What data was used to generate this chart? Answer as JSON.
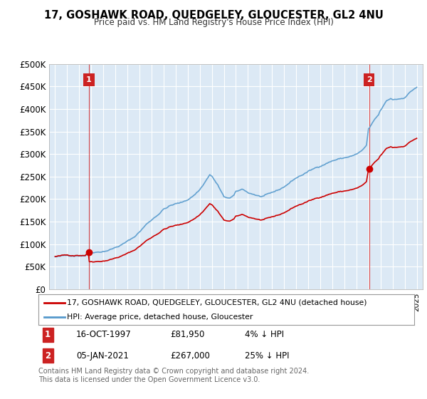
{
  "title": "17, GOSHAWK ROAD, QUEDGELEY, GLOUCESTER, GL2 4NU",
  "subtitle": "Price paid vs. HM Land Registry's House Price Index (HPI)",
  "legend_label_red": "17, GOSHAWK ROAD, QUEDGELEY, GLOUCESTER, GL2 4NU (detached house)",
  "legend_label_blue": "HPI: Average price, detached house, Gloucester",
  "annotation1_date": "16-OCT-1997",
  "annotation1_price": "£81,950",
  "annotation1_hpi": "4% ↓ HPI",
  "annotation2_date": "05-JAN-2021",
  "annotation2_price": "£267,000",
  "annotation2_hpi": "25% ↓ HPI",
  "footer": "Contains HM Land Registry data © Crown copyright and database right 2024.\nThis data is licensed under the Open Government Licence v3.0.",
  "background_color": "#ffffff",
  "plot_bg_color": "#dce9f5",
  "grid_color": "#ffffff",
  "red_color": "#cc0000",
  "blue_color": "#5599cc",
  "annotation_box_color": "#cc2222",
  "ylim": [
    0,
    500000
  ],
  "yticks": [
    0,
    50000,
    100000,
    150000,
    200000,
    250000,
    300000,
    350000,
    400000,
    450000,
    500000
  ],
  "sale1_year": 1997.8,
  "sale1_price": 81950,
  "sale2_year": 2021.05,
  "sale2_price": 267000
}
